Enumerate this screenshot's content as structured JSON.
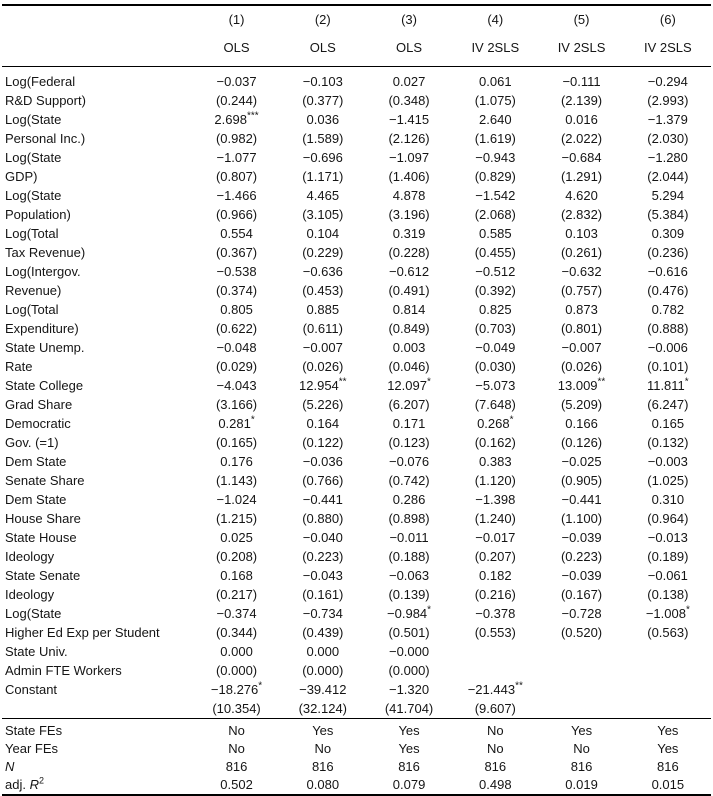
{
  "table": {
    "col_numbers": [
      "(1)",
      "(2)",
      "(3)",
      "(4)",
      "(5)",
      "(6)"
    ],
    "col_methods": [
      "OLS",
      "OLS",
      "OLS",
      "IV 2SLS",
      "IV 2SLS",
      "IV 2SLS"
    ],
    "body_rows": [
      {
        "label": "Log(Federal",
        "values": [
          "−0.037",
          "−0.103",
          "0.027",
          "0.061",
          "−0.111",
          "−0.294"
        ]
      },
      {
        "label": "R&D Support)",
        "values": [
          "(0.244)",
          "(0.377)",
          "(0.348)",
          "(1.075)",
          "(2.139)",
          "(2.993)"
        ]
      },
      {
        "label": "Log(State",
        "values": [
          "2.698***",
          "0.036",
          "−1.415",
          "2.640",
          "0.016",
          "−1.379"
        ]
      },
      {
        "label": "Personal Inc.)",
        "values": [
          "(0.982)",
          "(1.589)",
          "(2.126)",
          "(1.619)",
          "(2.022)",
          "(2.030)"
        ]
      },
      {
        "label": "Log(State",
        "values": [
          "−1.077",
          "−0.696",
          "−1.097",
          "−0.943",
          "−0.684",
          "−1.280"
        ]
      },
      {
        "label": "GDP)",
        "values": [
          "(0.807)",
          "(1.171)",
          "(1.406)",
          "(0.829)",
          "(1.291)",
          "(2.044)"
        ]
      },
      {
        "label": "Log(State",
        "values": [
          "−1.466",
          "4.465",
          "4.878",
          "−1.542",
          "4.620",
          "5.294"
        ]
      },
      {
        "label": "Population)",
        "values": [
          "(0.966)",
          "(3.105)",
          "(3.196)",
          "(2.068)",
          "(2.832)",
          "(5.384)"
        ]
      },
      {
        "label": "Log(Total",
        "values": [
          "0.554",
          "0.104",
          "0.319",
          "0.585",
          "0.103",
          "0.309"
        ]
      },
      {
        "label": "Tax Revenue)",
        "values": [
          "(0.367)",
          "(0.229)",
          "(0.228)",
          "(0.455)",
          "(0.261)",
          "(0.236)"
        ]
      },
      {
        "label": "Log(Intergov.",
        "values": [
          "−0.538",
          "−0.636",
          "−0.612",
          "−0.512",
          "−0.632",
          "−0.616"
        ]
      },
      {
        "label": "Revenue)",
        "values": [
          "(0.374)",
          "(0.453)",
          "(0.491)",
          "(0.392)",
          "(0.757)",
          "(0.476)"
        ]
      },
      {
        "label": "Log(Total",
        "values": [
          "0.805",
          "0.885",
          "0.814",
          "0.825",
          "0.873",
          "0.782"
        ]
      },
      {
        "label": "Expenditure)",
        "values": [
          "(0.622)",
          "(0.611)",
          "(0.849)",
          "(0.703)",
          "(0.801)",
          "(0.888)"
        ]
      },
      {
        "label": "State Unemp.",
        "values": [
          "−0.048",
          "−0.007",
          "0.003",
          "−0.049",
          "−0.007",
          "−0.006"
        ]
      },
      {
        "label": "Rate",
        "values": [
          "(0.029)",
          "(0.026)",
          "(0.046)",
          "(0.030)",
          "(0.026)",
          "(0.101)"
        ]
      },
      {
        "label": "State College",
        "values": [
          "−4.043",
          "12.954**",
          "12.097*",
          "−5.073",
          "13.009**",
          "11.811*"
        ]
      },
      {
        "label": "Grad Share",
        "values": [
          "(3.166)",
          "(5.226)",
          "(6.207)",
          "(7.648)",
          "(5.209)",
          "(6.247)"
        ]
      },
      {
        "label": "Democratic",
        "values": [
          "0.281*",
          "0.164",
          "0.171",
          "0.268*",
          "0.166",
          "0.165"
        ]
      },
      {
        "label": "Gov. (=1)",
        "values": [
          "(0.165)",
          "(0.122)",
          "(0.123)",
          "(0.162)",
          "(0.126)",
          "(0.132)"
        ]
      },
      {
        "label": "Dem State",
        "values": [
          "0.176",
          "−0.036",
          "−0.076",
          "0.383",
          "−0.025",
          "−0.003"
        ]
      },
      {
        "label": "Senate Share",
        "values": [
          "(1.143)",
          "(0.766)",
          "(0.742)",
          "(1.120)",
          "(0.905)",
          "(1.025)"
        ]
      },
      {
        "label": "Dem State",
        "values": [
          "−1.024",
          "−0.441",
          "0.286",
          "−1.398",
          "−0.441",
          "0.310"
        ]
      },
      {
        "label": "House Share",
        "values": [
          "(1.215)",
          "(0.880)",
          "(0.898)",
          "(1.240)",
          "(1.100)",
          "(0.964)"
        ]
      },
      {
        "label": "State House",
        "values": [
          "0.025",
          "−0.040",
          "−0.011",
          "−0.017",
          "−0.039",
          "−0.013"
        ]
      },
      {
        "label": "Ideology",
        "values": [
          "(0.208)",
          "(0.223)",
          "(0.188)",
          "(0.207)",
          "(0.223)",
          "(0.189)"
        ]
      },
      {
        "label": "State Senate",
        "values": [
          "0.168",
          "−0.043",
          "−0.063",
          "0.182",
          "−0.039",
          "−0.061"
        ]
      },
      {
        "label": "Ideology",
        "values": [
          "(0.217)",
          "(0.161)",
          "(0.139)",
          "(0.216)",
          "(0.167)",
          "(0.138)"
        ]
      },
      {
        "label": "Log(State",
        "values": [
          "−0.374",
          "−0.734",
          "−0.984*",
          "−0.378",
          "−0.728",
          "−1.008*"
        ]
      },
      {
        "label": "Higher Ed Exp per Student",
        "values": [
          "(0.344)",
          "(0.439)",
          "(0.501)",
          "(0.553)",
          "(0.520)",
          "(0.563)"
        ]
      },
      {
        "label": "State Univ.",
        "values": [
          "0.000",
          "0.000",
          "−0.000",
          "",
          "",
          ""
        ]
      },
      {
        "label": "Admin FTE Workers",
        "values": [
          "(0.000)",
          "(0.000)",
          "(0.000)",
          "",
          "",
          ""
        ]
      },
      {
        "label": "Constant",
        "values": [
          "−18.276*",
          "−39.412",
          "−1.320",
          "−21.443**",
          "",
          ""
        ]
      },
      {
        "label": "",
        "values": [
          "(10.354)",
          "(32.124)",
          "(41.704)",
          "(9.607)",
          "",
          ""
        ]
      }
    ],
    "footer_rows": [
      {
        "label": "State FEs",
        "values": [
          "No",
          "Yes",
          "Yes",
          "No",
          "Yes",
          "Yes"
        ]
      },
      {
        "label": "Year FEs",
        "values": [
          "No",
          "No",
          "Yes",
          "No",
          "No",
          "Yes"
        ]
      },
      {
        "label": "N",
        "label_italic": true,
        "values": [
          "816",
          "816",
          "816",
          "816",
          "816",
          "816"
        ]
      },
      {
        "label": "adj. R²",
        "label_rich": [
          {
            "t": "adj. "
          },
          {
            "t": "R",
            "i": true
          },
          {
            "t": "2",
            "sup": true
          }
        ],
        "values": [
          "0.502",
          "0.080",
          "0.079",
          "0.498",
          "0.019",
          "0.015"
        ]
      }
    ]
  }
}
